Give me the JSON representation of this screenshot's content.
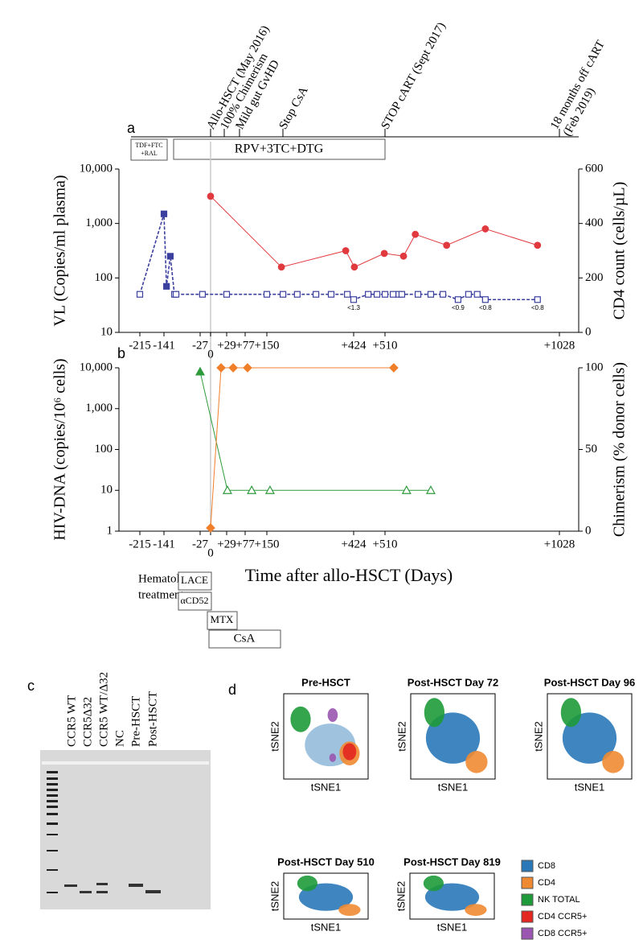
{
  "figure": {
    "panel_labels": [
      "a",
      "b",
      "c",
      "d"
    ]
  },
  "timeline": {
    "events": [
      "Allo-HSCT (May 2016)",
      "100% Chimerism",
      "Mild gut GvHD",
      "Stop CsA",
      "STOP cART (Sept 2017)",
      [
        "18 months off cART",
        "(Feb 2019)"
      ]
    ],
    "treatments": [
      [
        "TDF+FTC",
        "+RAL"
      ],
      [
        "RPV+3TC+DTG"
      ]
    ]
  },
  "chart_data": [
    {
      "type": "line",
      "ylabel": "VL (Copies/ml plasma)",
      "y2label": "CD4 count (cells/µL)",
      "xlim": [
        -280,
        1085
      ],
      "xticks": [
        -215,
        -141,
        -27,
        0,
        {
          "value": 29,
          "label": "+29"
        },
        {
          "value": 77,
          "label": "+77"
        },
        {
          "value": 150,
          "label": "+150"
        },
        {
          "value": 424,
          "label": "+424"
        },
        {
          "value": 510,
          "label": "+510"
        },
        {
          "value": 1028,
          "label": "+1028"
        }
      ],
      "yscale": "log",
      "ylim": [
        10,
        10000
      ],
      "yticks": [
        10,
        100,
        {
          "value": 1000,
          "label": "1,000"
        },
        {
          "value": 10000,
          "label": "10,000"
        }
      ],
      "y2lim": [
        0,
        600
      ],
      "y2ticks": [
        0,
        200,
        400,
        600
      ],
      "series": [
        {
          "color": "#3b3f9e",
          "marker": "square",
          "dashed": true,
          "x": [
            -215,
            -141,
            -133,
            -121,
            -108,
            -103,
            -21,
            29,
            150,
            201,
            246,
            305,
            353,
            404,
            424,
            464,
            488,
            510,
            534,
            551,
            560,
            608,
            646,
            682,
            727,
            758,
            784,
            808,
            963
          ],
          "values": [
            50,
            1500,
            70,
            250,
            50,
            50,
            50,
            50,
            50,
            50,
            50,
            50,
            50,
            50,
            40,
            50,
            50,
            50,
            50,
            50,
            50,
            50,
            50,
            50,
            40,
            50,
            50,
            40,
            40
          ],
          "filled": [
            false,
            true,
            true,
            true,
            false,
            false,
            false,
            false,
            false,
            false,
            false,
            false,
            false,
            false,
            false,
            false,
            false,
            false,
            false,
            false,
            false,
            false,
            false,
            false,
            false,
            false,
            false,
            false,
            false
          ]
        },
        {
          "color": "#e0393e",
          "marker": "circle",
          "axis": "y2",
          "dashed": false,
          "x": [
            0,
            196,
            399,
            426,
            508,
            565,
            600,
            693,
            808,
            963
          ],
          "values": [
            500,
            240,
            300,
            240,
            290,
            280,
            360,
            320,
            380,
            320
          ],
          "filled": [
            true,
            true,
            true,
            true,
            true,
            true,
            true,
            true,
            true,
            true
          ]
        }
      ],
      "annotations": [
        {
          "text": "<1.3",
          "x": 424
        },
        {
          "text": "<0.9",
          "x": 727
        },
        {
          "text": "<0.8",
          "x": 808
        },
        {
          "text": "<0.8",
          "x": 963
        }
      ]
    },
    {
      "type": "line",
      "xlabel": "Time after allo-HSCT (Days)",
      "ylabel": "HIV-DNA (copies/10⁶ cells)",
      "y2label": "Chimerism  (% donor cells)",
      "xlim": [
        -280,
        1085
      ],
      "xticks": [
        -215,
        -141,
        -27,
        0,
        {
          "value": 29,
          "label": "+29"
        },
        {
          "value": 77,
          "label": "+77"
        },
        {
          "value": 150,
          "label": "+150"
        },
        {
          "value": 424,
          "label": "+424"
        },
        {
          "value": 510,
          "label": "+510"
        },
        {
          "value": 1028,
          "label": "+1028"
        }
      ],
      "yscale": "log",
      "ylim": [
        1,
        10000
      ],
      "yticks": [
        1,
        10,
        100,
        {
          "value": 1000,
          "label": "1,000"
        },
        {
          "value": 10000,
          "label": "10,000"
        }
      ],
      "y2lim": [
        0,
        100
      ],
      "y2ticks": [
        0,
        50,
        100
      ],
      "series": [
        {
          "color": "#2e9a3c",
          "marker": "triangle",
          "dashed": false,
          "x": [
            -27,
            31,
            99,
            160,
            574,
            646
          ],
          "values": [
            8000,
            10,
            10,
            10,
            10,
            10
          ],
          "filled": [
            true,
            false,
            false,
            false,
            false,
            false
          ]
        },
        {
          "color": "#f07f2a",
          "marker": "diamond",
          "axis": "y2",
          "dashed": false,
          "x": [
            0,
            19,
            46,
            85,
            536
          ],
          "values": [
            2,
            100,
            100,
            100,
            100
          ],
          "filled": [
            true,
            true,
            true,
            true,
            true
          ]
        }
      ]
    }
  ],
  "hematological_treatment": {
    "label": [
      "Hematological",
      "treatment"
    ],
    "drugs": [
      "LACE",
      "αCD52",
      "MTX",
      "CsA"
    ]
  },
  "gel": {
    "lanes": [
      "CCR5 WT",
      "CCR5Δ32",
      "CCR5 WT/Δ32",
      "NC",
      "Pre-HSCT",
      "Post-HSCT"
    ]
  },
  "tsne": {
    "xlabel": "tSNE1",
    "ylabel": "tSNE2",
    "plots": [
      "Pre-HSCT",
      "Post-HSCT Day 72",
      "Post-HSCT Day 96",
      "Post-HSCT Day 510",
      "Post-HSCT  Day 819"
    ],
    "legend": [
      {
        "label": "CD8",
        "color": "#2a78b8"
      },
      {
        "label": "CD4",
        "color": "#f08a32"
      },
      {
        "label": "NK TOTAL",
        "color": "#1e9a3a"
      },
      {
        "label": "CD4 CCR5+",
        "color": "#e3261f"
      },
      {
        "label": "CD8 CCR5+",
        "color": "#9a56b0"
      }
    ]
  }
}
